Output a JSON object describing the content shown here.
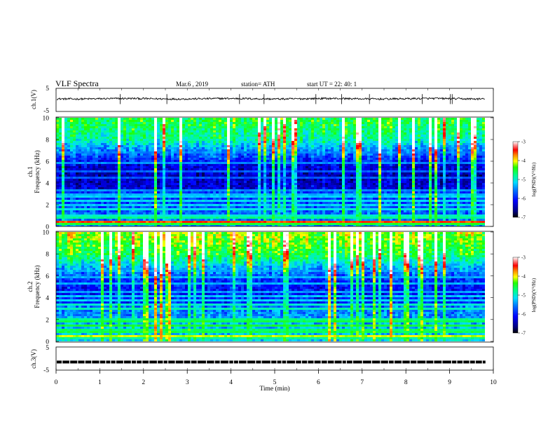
{
  "header": {
    "title": "VLF  Spectra",
    "date": "Mar.6  , 2019",
    "station": "station= ATH",
    "start": "start  UT  =    22: 40: 1"
  },
  "chart_data": [
    {
      "type": "line",
      "panel": "ch1-waveform",
      "ylabel": "ch.1(V)",
      "ylim": [
        -5,
        5
      ],
      "yticks": [
        "5",
        "-5"
      ],
      "xlim": [
        0,
        10
      ],
      "baseline_level": 0.5,
      "noise_amplitude": 0.4,
      "line_color": "#000000"
    },
    {
      "type": "heatmap",
      "panel": "ch1-spectrogram",
      "ylabel_top": "ch.1",
      "ylabel": "Frequency  (kHz)",
      "ylim": [
        0,
        10
      ],
      "yticks": [
        "0",
        "2",
        "4",
        "6",
        "8",
        "10"
      ],
      "xlim": [
        0,
        9.82
      ],
      "colorbar": {
        "label": "log(PSD)(V²/Hz)",
        "range": [
          -7,
          -3
        ],
        "ticks": [
          "-3",
          "-4",
          "-5",
          "-6",
          "-7"
        ]
      }
    },
    {
      "type": "heatmap",
      "panel": "ch2-spectrogram",
      "ylabel_top": "ch.2",
      "ylabel": "Frequency  (kHz)",
      "ylim": [
        0,
        10
      ],
      "yticks": [
        "0",
        "2",
        "4",
        "6",
        "8",
        "10"
      ],
      "xlim": [
        0,
        9.82
      ],
      "colorbar": {
        "label": "log(PSD)(V²/Hz)",
        "range": [
          -7,
          -3
        ],
        "ticks": [
          "-3",
          "-4",
          "-5",
          "-6",
          "-7"
        ]
      }
    },
    {
      "type": "line",
      "panel": "ch3-waveform",
      "ylabel": "ch.3(V)",
      "ylim": [
        -5,
        5
      ],
      "yticks": [
        "5",
        "-5"
      ],
      "xlim": [
        0,
        10
      ],
      "signal_level": -1.5,
      "line_color": "#000000"
    }
  ],
  "xaxis": {
    "label": "Time  (min)",
    "ticks": [
      "0",
      "1",
      "2",
      "3",
      "4",
      "5",
      "6",
      "7",
      "8",
      "9",
      "10"
    ],
    "range": [
      0,
      10
    ]
  }
}
